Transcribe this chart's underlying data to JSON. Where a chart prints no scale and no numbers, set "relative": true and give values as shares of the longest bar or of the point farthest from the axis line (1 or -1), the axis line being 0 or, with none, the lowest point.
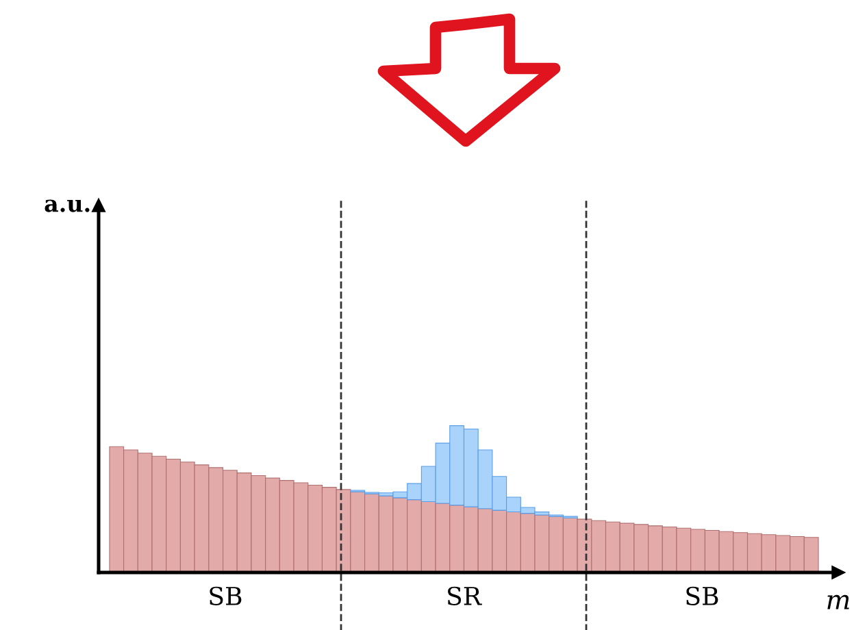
{
  "chart_data": {
    "type": "bar",
    "stacked": true,
    "relative": true,
    "xlabel": "m",
    "grid": false,
    "categories": [
      null,
      null,
      null,
      null,
      null,
      null,
      null,
      null,
      null,
      null,
      null,
      null,
      null,
      null,
      null,
      null,
      null,
      null,
      null,
      null,
      null,
      null,
      null,
      null,
      null,
      null,
      null,
      null,
      null,
      null,
      null,
      null,
      null,
      null,
      null,
      null,
      null,
      null,
      null,
      null,
      null,
      null,
      null,
      null,
      null,
      null,
      null,
      null,
      null,
      null
    ],
    "series": [
      {
        "color": "#e3aaaa",
        "values": [
          0.857,
          0.835,
          0.813,
          0.792,
          0.772,
          0.752,
          0.733,
          0.714,
          0.696,
          0.678,
          0.66,
          0.643,
          0.627,
          0.611,
          0.595,
          0.58,
          0.565,
          0.55,
          0.536,
          0.522,
          0.509,
          0.496,
          0.483,
          0.471,
          0.459,
          0.447,
          0.435,
          0.424,
          0.413,
          0.403,
          0.392,
          0.382,
          0.372,
          0.363,
          0.353,
          0.344,
          0.335,
          0.327,
          0.318,
          0.31,
          0.302,
          0.294,
          0.287,
          0.279,
          0.272,
          0.265,
          0.258,
          0.252,
          0.245,
          0.239
        ]
      },
      {
        "color": "#a9d3fb",
        "values": [
          null,
          null,
          null,
          null,
          null,
          null,
          null,
          null,
          null,
          null,
          null,
          null,
          null,
          null,
          null,
          null,
          null,
          0.01,
          0.01,
          0.02,
          0.04,
          0.11,
          0.24,
          0.41,
          0.541,
          0.53,
          0.4,
          0.23,
          0.1,
          0.04,
          0.02,
          0.01,
          0.01,
          null,
          null,
          null,
          null,
          null,
          null,
          null,
          null,
          null,
          null,
          null,
          null,
          null,
          null,
          null,
          null,
          null
        ]
      }
    ],
    "annotations": [
      "a.u.",
      "SB",
      "SR",
      "SB"
    ]
  }
}
